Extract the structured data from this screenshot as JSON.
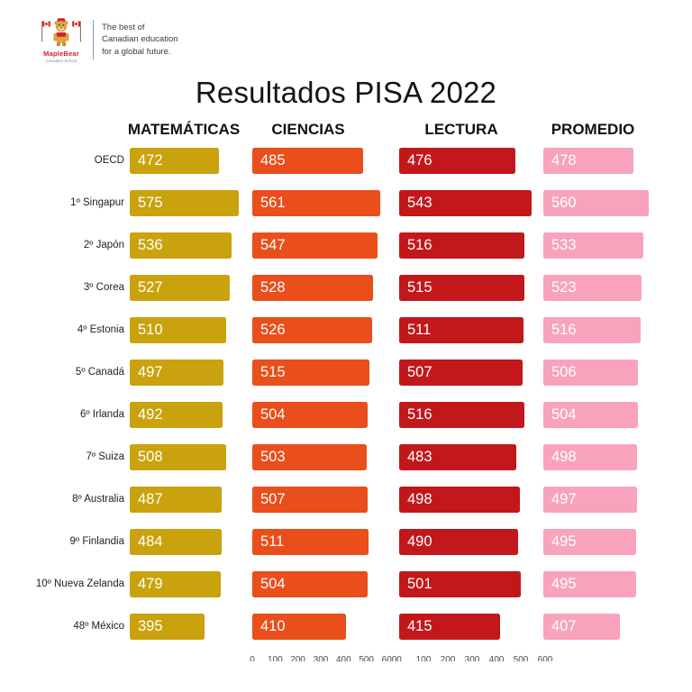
{
  "header": {
    "logo": {
      "brand": "MapleBear",
      "sub": "Canadian School",
      "tagline_lines": [
        "The best of",
        "Canadian education",
        "for a global future."
      ]
    },
    "title": "Resultados PISA 2022"
  },
  "chart_data": {
    "type": "bar",
    "orientation": "horizontal",
    "title": "Resultados PISA 2022",
    "xlim": [
      0,
      600
    ],
    "axis_ticks": [
      0,
      100,
      200,
      300,
      400,
      500,
      600
    ],
    "value_labels": true,
    "legend_position": "column-headers",
    "categories": [
      "OECD",
      "1º Singapur",
      "2º Japón",
      "3º Corea",
      "4º Estonia",
      "5º Canadá",
      "6º Irlanda",
      "7º Suiza",
      "8º Australia",
      "9º Finlandia",
      "10º Nueva Zelanda",
      "48º México"
    ],
    "series": [
      {
        "name": "MATEMÁTICAS",
        "color": "#c9a20d",
        "values": [
          472,
          575,
          536,
          527,
          510,
          497,
          492,
          508,
          487,
          484,
          479,
          395
        ]
      },
      {
        "name": "CIENCIAS",
        "color": "#e94e1b",
        "values": [
          485,
          561,
          547,
          528,
          526,
          515,
          504,
          503,
          507,
          511,
          504,
          410
        ]
      },
      {
        "name": "LECTURA",
        "color": "#c2181b",
        "values": [
          476,
          543,
          516,
          515,
          511,
          507,
          516,
          483,
          498,
          490,
          501,
          415
        ]
      },
      {
        "name": "PROMEDIO",
        "color": "#f8a3bb",
        "values": [
          478,
          560,
          533,
          523,
          516,
          506,
          504,
          498,
          497,
          495,
          495,
          407
        ]
      }
    ]
  }
}
